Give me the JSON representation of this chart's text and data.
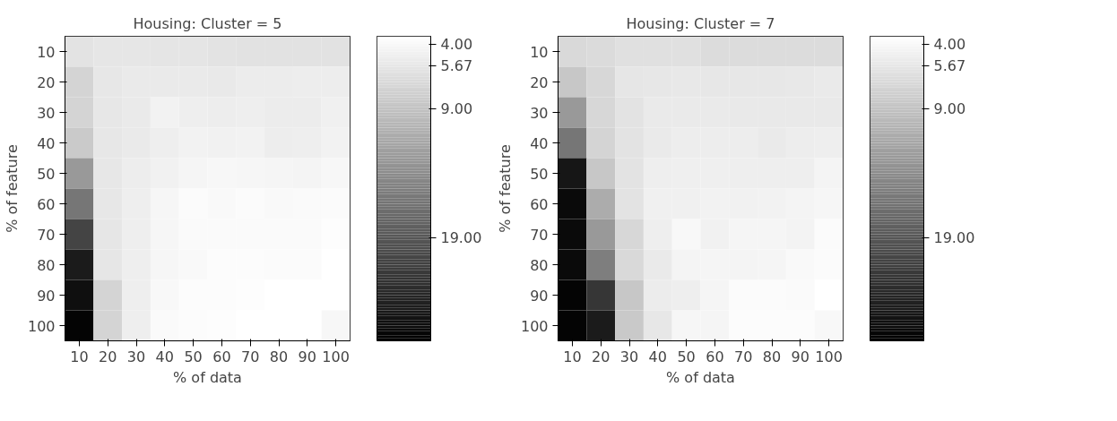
{
  "chart_data": [
    {
      "type": "heatmap",
      "title": "Housing: Cluster = 5",
      "xlabel": "% of data",
      "ylabel": "% of feature",
      "categories": [
        "10",
        "20",
        "30",
        "40",
        "50",
        "60",
        "70",
        "80",
        "90",
        "100"
      ],
      "y_categories": [
        "10",
        "20",
        "30",
        "40",
        "50",
        "60",
        "70",
        "80",
        "90",
        "100"
      ],
      "cells": [
        [
          6.0,
          5.7,
          5.7,
          5.8,
          5.8,
          6.0,
          6.1,
          6.1,
          6.1,
          6.1
        ],
        [
          7.4,
          5.6,
          5.3,
          5.3,
          5.3,
          5.4,
          5.2,
          5.2,
          5.1,
          5.1
        ],
        [
          7.4,
          5.6,
          5.3,
          4.6,
          4.95,
          5.1,
          4.95,
          5.2,
          5.2,
          4.8
        ],
        [
          8.3,
          5.6,
          5.3,
          4.95,
          4.6,
          4.7,
          4.6,
          5.1,
          4.95,
          4.6
        ],
        [
          12.8,
          5.6,
          5.1,
          4.7,
          4.3,
          4.15,
          4.2,
          4.3,
          4.45,
          4.15
        ],
        [
          16.1,
          5.6,
          5.0,
          4.2,
          3.8,
          4.0,
          3.8,
          4.0,
          3.85,
          3.75
        ],
        [
          20.7,
          5.7,
          5.0,
          4.2,
          3.85,
          3.85,
          3.85,
          3.85,
          3.85,
          3.55
        ],
        [
          24.5,
          5.7,
          5.0,
          4.2,
          3.95,
          3.7,
          3.65,
          3.8,
          3.8,
          3.4
        ],
        [
          25.6,
          7.4,
          5.0,
          4.05,
          3.7,
          3.65,
          3.6,
          3.4,
          3.4,
          3.4
        ],
        [
          26.6,
          7.4,
          4.95,
          3.85,
          3.65,
          3.55,
          3.4,
          3.4,
          3.4,
          4.15
        ]
      ],
      "clim": [
        3.4,
        27
      ],
      "cticks": [
        {
          "value": 4,
          "label": "4.00"
        },
        {
          "value": 5.67,
          "label": "5.67"
        },
        {
          "value": 9,
          "label": "9.00"
        },
        {
          "value": 19,
          "label": "19.00"
        }
      ]
    },
    {
      "type": "heatmap",
      "title": "Housing: Cluster = 7",
      "xlabel": "% of data",
      "ylabel": "% of feature",
      "categories": [
        "10",
        "20",
        "30",
        "40",
        "50",
        "60",
        "70",
        "80",
        "90",
        "100"
      ],
      "y_categories": [
        "10",
        "20",
        "30",
        "40",
        "50",
        "60",
        "70",
        "80",
        "90",
        "100"
      ],
      "cells": [
        [
          6.9,
          6.7,
          6.3,
          6.3,
          6.3,
          6.6,
          6.6,
          6.6,
          6.6,
          6.6
        ],
        [
          8.6,
          7.1,
          5.7,
          5.6,
          5.5,
          5.6,
          5.6,
          5.6,
          5.5,
          5.3
        ],
        [
          12.8,
          7.1,
          6.0,
          5.3,
          5.3,
          5.3,
          5.45,
          5.45,
          5.4,
          5.4
        ],
        [
          16.1,
          7.4,
          6.0,
          5.3,
          5.1,
          5.1,
          5.1,
          5.3,
          5.1,
          5.0
        ],
        [
          25,
          8.6,
          6.0,
          4.95,
          4.9,
          4.9,
          5.0,
          4.95,
          4.95,
          4.45
        ],
        [
          26.1,
          11.1,
          6.0,
          4.8,
          4.8,
          4.6,
          4.7,
          4.6,
          4.45,
          4.2
        ],
        [
          26.1,
          12.8,
          7.1,
          4.95,
          4.05,
          4.7,
          4.3,
          4.3,
          4.5,
          3.8
        ],
        [
          26.1,
          15.3,
          6.9,
          5.3,
          4.45,
          4.3,
          4.45,
          4.3,
          4.0,
          3.8
        ],
        [
          26.6,
          22,
          8.6,
          5.2,
          4.95,
          4.3,
          3.8,
          3.75,
          3.85,
          3.4
        ],
        [
          26.6,
          24.5,
          8.4,
          5.6,
          4.2,
          4.3,
          3.65,
          3.65,
          3.65,
          4.05
        ]
      ],
      "clim": [
        3.4,
        27
      ],
      "cticks": [
        {
          "value": 4,
          "label": "4.00"
        },
        {
          "value": 5.67,
          "label": "5.67"
        },
        {
          "value": 9,
          "label": "9.00"
        },
        {
          "value": 19,
          "label": "19.00"
        }
      ]
    }
  ]
}
